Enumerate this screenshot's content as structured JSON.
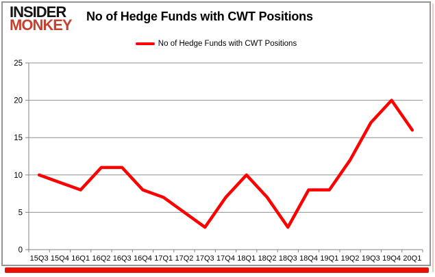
{
  "header": {
    "logo_line1": "INSIDER",
    "logo_line2": "MONKEY",
    "title": "No of Hedge Funds with CWT Positions"
  },
  "legend": {
    "label": "No of Hedge Funds with CWT Positions"
  },
  "colors": {
    "series_line": "#fe0000",
    "logo_accent": "#c5402f",
    "grid_line": "#8f8f8f",
    "axis_line": "#808080",
    "label_text": "#000000",
    "bottom_bar": "#ec1004",
    "card_border": "#949494"
  },
  "chart_data": {
    "type": "line",
    "title": "No of Hedge Funds with CWT Positions",
    "categories": [
      "15Q3",
      "15Q4",
      "16Q1",
      "16Q2",
      "16Q3",
      "16Q4",
      "17Q1",
      "17Q2",
      "17Q3",
      "17Q4",
      "18Q1",
      "18Q2",
      "18Q3",
      "18Q4",
      "19Q1",
      "19Q2",
      "19Q3",
      "19Q4",
      "20Q1"
    ],
    "series": [
      {
        "name": "No of Hedge Funds with CWT Positions",
        "values": [
          10,
          9,
          8,
          11,
          11,
          8,
          7,
          5,
          3,
          7,
          10,
          7,
          3,
          8,
          8,
          12,
          17,
          20,
          16
        ]
      }
    ],
    "xlabel": "",
    "ylabel": "",
    "ylim": [
      0,
      25
    ],
    "yticks": [
      0,
      5,
      10,
      15,
      20,
      25
    ],
    "grid": true,
    "legend_position": "top-center"
  }
}
